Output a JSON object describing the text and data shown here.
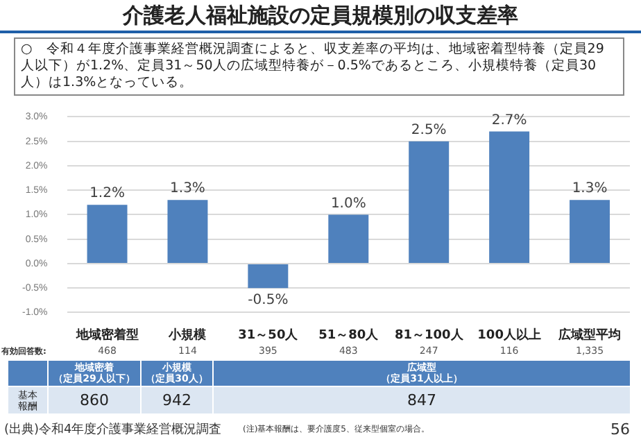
{
  "chart_data": {
    "type": "bar",
    "title": "介護老人福祉施設の定員規模別の収支差率",
    "categories": [
      "地域密着型",
      "小規模",
      "31～50人",
      "51～80人",
      "81～100人",
      "100人以上",
      "広域型平均"
    ],
    "values": [
      1.2,
      1.3,
      -0.5,
      1.0,
      2.5,
      2.7,
      1.3
    ],
    "value_labels": [
      "1.2%",
      "1.3%",
      "-0.5%",
      "1.0%",
      "2.5%",
      "2.7%",
      "1.3%"
    ],
    "color": "#4f81bd",
    "ylim": [
      -1,
      3
    ],
    "yticks": [
      {
        "value": -1,
        "label": "-1.0%"
      },
      {
        "value": -0.5,
        "label": "-0.5%"
      },
      {
        "value": 0,
        "label": "0.0%"
      },
      {
        "value": 0.5,
        "label": "0.5%"
      },
      {
        "value": 1,
        "label": "1.0%"
      },
      {
        "value": 1.5,
        "label": "1.5%"
      },
      {
        "value": 2,
        "label": "2.0%"
      },
      {
        "value": 2.5,
        "label": "2.5%"
      },
      {
        "value": 3,
        "label": "3.0%"
      }
    ],
    "grid": "y",
    "legend": false,
    "annotations": [
      "○　令和４年度介護事業経営概況調査によると、収支差率の平均は、地域密着型特養（定員29人以下）が1.2%、定員31～50人の広域型特養が－0.5%であるところ、小規模特養（定員30人）は1.3%となっている。",
      "有効回答数:",
      "468",
      "114",
      "395",
      "483",
      "247",
      "116",
      "1,335",
      "地域密着",
      "（定員29人以下）",
      "小規模",
      "（定員30人）",
      "広域型",
      "（定員31人以上）",
      "基本報酬",
      "860",
      "942",
      "847",
      "(出典)令和4年度介護事業経営概況調査",
      "(注)基本報酬は、要介護度5、従来型個室の場合。",
      "56"
    ]
  }
}
